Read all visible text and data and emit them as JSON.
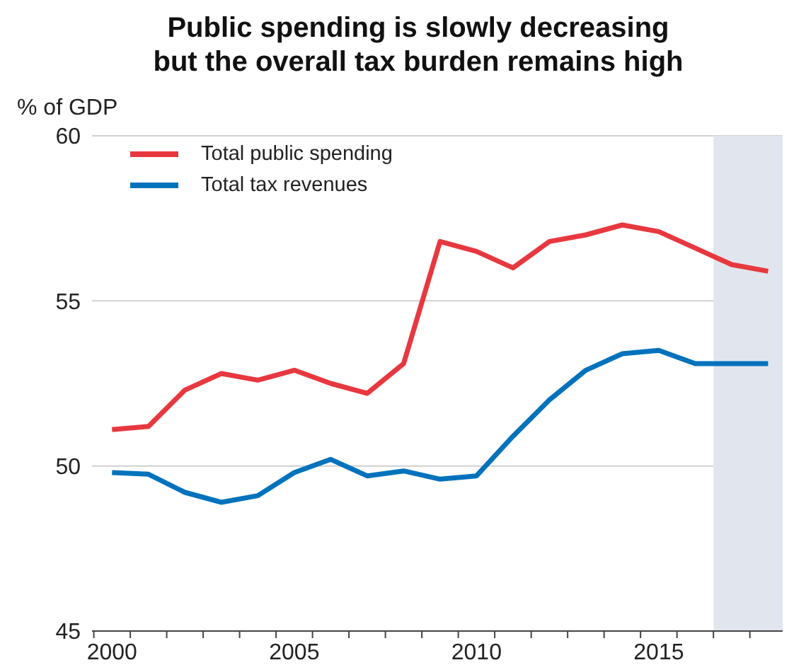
{
  "chart_data": {
    "type": "line",
    "title": "Public spending is slowly decreasing\nbut the overall tax burden remains high",
    "ylabel": "% of GDP",
    "x": [
      2000,
      2001,
      2002,
      2003,
      2004,
      2005,
      2006,
      2007,
      2008,
      2009,
      2010,
      2011,
      2012,
      2013,
      2014,
      2015,
      2016,
      2017,
      2018
    ],
    "series": [
      {
        "name": "Total public spending",
        "color": "#e8383f",
        "values": [
          51.1,
          51.2,
          52.3,
          52.8,
          52.6,
          52.9,
          52.5,
          52.2,
          53.1,
          56.8,
          56.5,
          56.0,
          56.8,
          57.0,
          57.3,
          57.1,
          56.6,
          56.1,
          55.9
        ]
      },
      {
        "name": "Total tax revenues",
        "color": "#0072bc",
        "values": [
          49.8,
          49.75,
          49.2,
          48.9,
          49.1,
          49.8,
          50.2,
          49.7,
          49.85,
          49.6,
          49.7,
          50.9,
          52.0,
          52.9,
          53.4,
          53.5,
          53.1,
          53.1,
          53.1
        ]
      }
    ],
    "xlim": [
      1999.45,
      2018.4
    ],
    "xticks": [
      {
        "value": 1999.5,
        "label": null
      },
      {
        "value": 2000,
        "label": "2000"
      },
      {
        "value": 2000.5,
        "label": null
      },
      {
        "value": 2001.5,
        "label": null
      },
      {
        "value": 2002.5,
        "label": null
      },
      {
        "value": 2003.5,
        "label": null
      },
      {
        "value": 2004.5,
        "label": null
      },
      {
        "value": 2005,
        "label": "2005"
      },
      {
        "value": 2005.5,
        "label": null
      },
      {
        "value": 2006.5,
        "label": null
      },
      {
        "value": 2007.5,
        "label": null
      },
      {
        "value": 2008.5,
        "label": null
      },
      {
        "value": 2009.5,
        "label": null
      },
      {
        "value": 2010,
        "label": "2010"
      },
      {
        "value": 2010.5,
        "label": null
      },
      {
        "value": 2011.5,
        "label": null
      },
      {
        "value": 2012.5,
        "label": null
      },
      {
        "value": 2013.5,
        "label": null
      },
      {
        "value": 2014.5,
        "label": null
      },
      {
        "value": 2015,
        "label": "2015"
      },
      {
        "value": 2015.5,
        "label": null
      },
      {
        "value": 2016.5,
        "label": null
      },
      {
        "value": 2017.5,
        "label": null
      }
    ],
    "ylim": [
      45,
      60
    ],
    "yticks": [
      45,
      50,
      55,
      60
    ],
    "bands": [
      {
        "axis": "x",
        "from": 2016.5,
        "to": 2018.4,
        "color": "#e1e6ee"
      }
    ],
    "grid": "y",
    "legend": "top left",
    "marker": "none",
    "line_style": "solid"
  }
}
